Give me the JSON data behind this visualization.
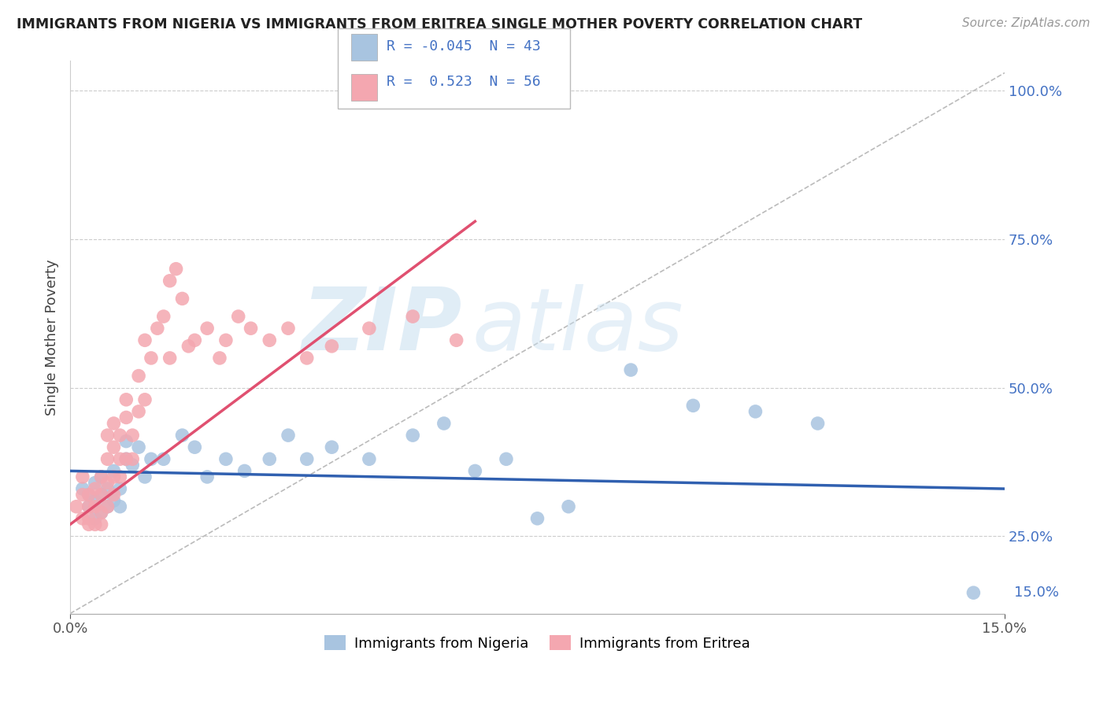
{
  "title": "IMMIGRANTS FROM NIGERIA VS IMMIGRANTS FROM ERITREA SINGLE MOTHER POVERTY CORRELATION CHART",
  "source": "Source: ZipAtlas.com",
  "ylabel": "Single Mother Poverty",
  "legend_label1": "Immigrants from Nigeria",
  "legend_label2": "Immigrants from Eritrea",
  "r1": "-0.045",
  "n1": "43",
  "r2": "0.523",
  "n2": "56",
  "xlim": [
    0.0,
    0.15
  ],
  "ylim": [
    0.12,
    1.05
  ],
  "grid_color": "#cccccc",
  "color_nigeria": "#a8c4e0",
  "color_eritrea": "#f4a7b0",
  "line_color_nigeria": "#3060b0",
  "line_color_eritrea": "#e05070",
  "watermark_zip": "ZIP",
  "watermark_atlas": "atlas",
  "background_color": "#ffffff",
  "nigeria_x": [
    0.002,
    0.003,
    0.003,
    0.004,
    0.004,
    0.004,
    0.005,
    0.005,
    0.005,
    0.006,
    0.006,
    0.007,
    0.007,
    0.008,
    0.008,
    0.009,
    0.009,
    0.01,
    0.011,
    0.012,
    0.013,
    0.015,
    0.018,
    0.02,
    0.022,
    0.025,
    0.028,
    0.032,
    0.035,
    0.038,
    0.042,
    0.048,
    0.055,
    0.06,
    0.065,
    0.07,
    0.075,
    0.08,
    0.09,
    0.1,
    0.11,
    0.12,
    0.145
  ],
  "nigeria_y": [
    0.33,
    0.3,
    0.32,
    0.31,
    0.28,
    0.34,
    0.32,
    0.29,
    0.35,
    0.3,
    0.33,
    0.31,
    0.36,
    0.33,
    0.3,
    0.38,
    0.41,
    0.37,
    0.4,
    0.35,
    0.38,
    0.38,
    0.42,
    0.4,
    0.35,
    0.38,
    0.36,
    0.38,
    0.42,
    0.38,
    0.4,
    0.38,
    0.42,
    0.44,
    0.36,
    0.38,
    0.28,
    0.3,
    0.53,
    0.47,
    0.46,
    0.44,
    0.155
  ],
  "eritrea_x": [
    0.001,
    0.002,
    0.002,
    0.002,
    0.003,
    0.003,
    0.003,
    0.003,
    0.004,
    0.004,
    0.004,
    0.005,
    0.005,
    0.005,
    0.005,
    0.006,
    0.006,
    0.006,
    0.006,
    0.007,
    0.007,
    0.007,
    0.007,
    0.008,
    0.008,
    0.008,
    0.009,
    0.009,
    0.009,
    0.01,
    0.01,
    0.011,
    0.011,
    0.012,
    0.012,
    0.013,
    0.014,
    0.015,
    0.016,
    0.016,
    0.017,
    0.018,
    0.019,
    0.02,
    0.022,
    0.024,
    0.025,
    0.027,
    0.029,
    0.032,
    0.035,
    0.038,
    0.042,
    0.048,
    0.055,
    0.062
  ],
  "eritrea_y": [
    0.3,
    0.28,
    0.32,
    0.35,
    0.27,
    0.3,
    0.32,
    0.28,
    0.3,
    0.33,
    0.27,
    0.32,
    0.29,
    0.35,
    0.27,
    0.3,
    0.34,
    0.38,
    0.42,
    0.35,
    0.4,
    0.44,
    0.32,
    0.38,
    0.42,
    0.35,
    0.45,
    0.48,
    0.38,
    0.42,
    0.38,
    0.46,
    0.52,
    0.48,
    0.58,
    0.55,
    0.6,
    0.62,
    0.68,
    0.55,
    0.7,
    0.65,
    0.57,
    0.58,
    0.6,
    0.55,
    0.58,
    0.62,
    0.6,
    0.58,
    0.6,
    0.55,
    0.57,
    0.6,
    0.62,
    0.58
  ],
  "nigeria_line_x": [
    0.0,
    0.15
  ],
  "nigeria_line_y": [
    0.36,
    0.33
  ],
  "eritrea_line_x": [
    0.0,
    0.065
  ],
  "eritrea_line_y": [
    0.27,
    0.78
  ],
  "diag_line_x": [
    0.0,
    0.15
  ],
  "diag_line_y": [
    0.12,
    1.03
  ]
}
